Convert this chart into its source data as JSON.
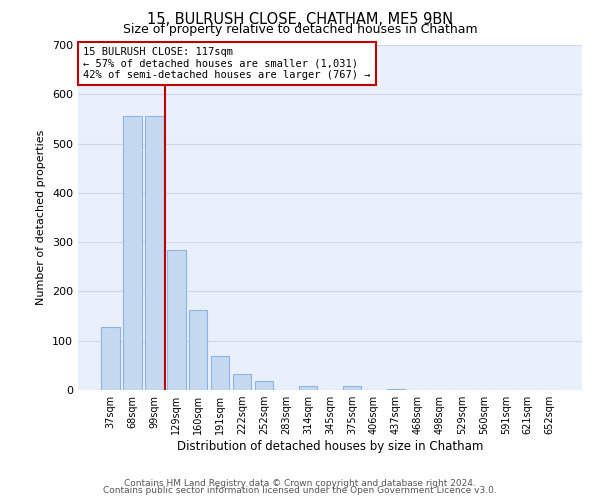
{
  "title": "15, BULRUSH CLOSE, CHATHAM, ME5 9BN",
  "subtitle": "Size of property relative to detached houses in Chatham",
  "xlabel": "Distribution of detached houses by size in Chatham",
  "ylabel": "Number of detached properties",
  "bar_labels": [
    "37sqm",
    "68sqm",
    "99sqm",
    "129sqm",
    "160sqm",
    "191sqm",
    "222sqm",
    "252sqm",
    "283sqm",
    "314sqm",
    "345sqm",
    "375sqm",
    "406sqm",
    "437sqm",
    "468sqm",
    "498sqm",
    "529sqm",
    "560sqm",
    "591sqm",
    "621sqm",
    "652sqm"
  ],
  "bar_values": [
    128,
    555,
    555,
    285,
    163,
    68,
    32,
    18,
    0,
    8,
    0,
    8,
    0,
    3,
    0,
    0,
    0,
    0,
    0,
    0,
    0
  ],
  "bar_color": "#c5d9f1",
  "bar_edge_color": "#8db4e2",
  "vline_color": "#c00000",
  "ylim": [
    0,
    700
  ],
  "yticks": [
    0,
    100,
    200,
    300,
    400,
    500,
    600,
    700
  ],
  "annotation_box_text": "15 BULRUSH CLOSE: 117sqm\n← 57% of detached houses are smaller (1,031)\n42% of semi-detached houses are larger (767) →",
  "annotation_box_color": "#c00000",
  "annotation_box_fill": "#ffffff",
  "footnote1": "Contains HM Land Registry data © Crown copyright and database right 2024.",
  "footnote2": "Contains public sector information licensed under the Open Government Licence v3.0.",
  "grid_color": "#d0d8e8",
  "background_color": "#eaf0fb"
}
